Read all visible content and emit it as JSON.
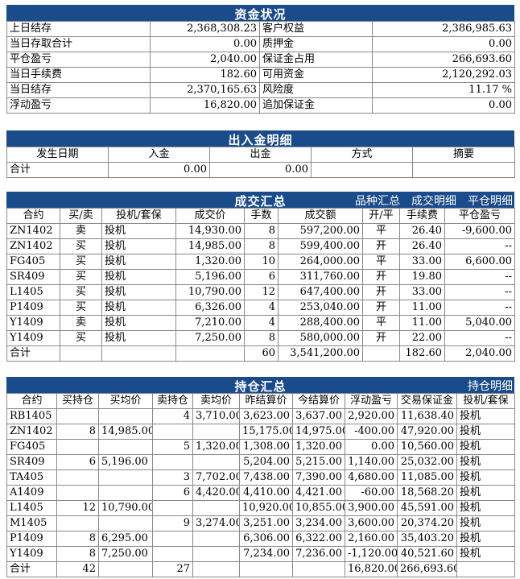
{
  "fund": {
    "title": "资金状况",
    "rows": [
      [
        "上日结存",
        "2,368,308.23",
        "客户权益",
        "2,386,985.63"
      ],
      [
        "当日存取合计",
        "0.00",
        "质押金",
        "0.00"
      ],
      [
        "平仓盈亏",
        "2,040.00",
        "保证金占用",
        "266,693.60"
      ],
      [
        "当日手续费",
        "182.60",
        "可用资金",
        "2,120,292.03"
      ],
      [
        "当日结存",
        "2,370,165.63",
        "风险度",
        "11.17 %"
      ],
      [
        "浮动盈亏",
        "16,820.00",
        "追加保证金",
        "0.00"
      ]
    ]
  },
  "cash": {
    "title": "出入金明细",
    "headers": [
      "发生日期",
      "入金",
      "出金",
      "方式",
      "摘要"
    ],
    "total": [
      "合计",
      "0.00",
      "0.00",
      "",
      ""
    ]
  },
  "trades": {
    "title": "成交汇总",
    "links": [
      "品种汇总",
      "成交明细",
      "平仓明细"
    ],
    "headers": [
      "合约",
      "买/卖",
      "投机/套保",
      "成交价",
      "手数",
      "成交额",
      "开/平",
      "手续费",
      "平仓盈亏"
    ],
    "rows": [
      [
        "ZN1402",
        "卖",
        "投机",
        "14,930.00",
        "8",
        "597,200.00",
        "平",
        "26.40",
        "-9,600.00"
      ],
      [
        "ZN1402",
        "买",
        "投机",
        "14,985.00",
        "8",
        "599,400.00",
        "开",
        "26.40",
        "--"
      ],
      [
        "FG405",
        "买",
        "投机",
        "1,320.00",
        "10",
        "264,000.00",
        "平",
        "33.00",
        "6,600.00"
      ],
      [
        "SR409",
        "买",
        "投机",
        "5,196.00",
        "6",
        "311,760.00",
        "开",
        "19.80",
        "--"
      ],
      [
        "L1405",
        "买",
        "投机",
        "10,790.00",
        "12",
        "647,400.00",
        "开",
        "33.00",
        "--"
      ],
      [
        "P1409",
        "买",
        "投机",
        "6,326.00",
        "4",
        "253,040.00",
        "开",
        "11.00",
        "--"
      ],
      [
        "Y1409",
        "卖",
        "投机",
        "7,210.00",
        "4",
        "288,400.00",
        "平",
        "11.00",
        "5,040.00"
      ],
      [
        "Y1409",
        "买",
        "投机",
        "7,250.00",
        "8",
        "580,000.00",
        "开",
        "22.00",
        "--"
      ]
    ],
    "total": [
      "合计",
      "",
      "",
      "",
      "60",
      "3,541,200.00",
      "",
      "182.60",
      "2,040.00"
    ]
  },
  "positions": {
    "title": "持仓汇总",
    "links": [
      "持仓明细"
    ],
    "headers": [
      "合约",
      "买持仓",
      "买均价",
      "卖持仓",
      "卖均价",
      "昨结算价",
      "今结算价",
      "浮动盈亏",
      "交易保证金",
      "投机/套保"
    ],
    "rows": [
      [
        "RB1405",
        "",
        "",
        "4",
        "3,710.00",
        "3,623.00",
        "3,637.00",
        "2,920.00",
        "11,638.40",
        "投机"
      ],
      [
        "ZN1402",
        "8",
        "14,985.00",
        "",
        "",
        "15,175.00",
        "14,975.00",
        "-400.00",
        "47,920.00",
        "投机"
      ],
      [
        "FG405",
        "",
        "",
        "5",
        "1,320.00",
        "1,308.00",
        "1,320.00",
        "0.00",
        "10,560.00",
        "投机"
      ],
      [
        "SR409",
        "6",
        "5,196.00",
        "",
        "",
        "5,204.00",
        "5,215.00",
        "1,140.00",
        "25,032.00",
        "投机"
      ],
      [
        "TA405",
        "",
        "",
        "3",
        "7,702.00",
        "7,438.00",
        "7,390.00",
        "4,680.00",
        "11,085.00",
        "投机"
      ],
      [
        "A1409",
        "",
        "",
        "6",
        "4,420.00",
        "4,410.00",
        "4,421.00",
        "-60.00",
        "18,568.20",
        "投机"
      ],
      [
        "L1405",
        "12",
        "10,790.00",
        "",
        "",
        "10,920.00",
        "10,855.00",
        "3,900.00",
        "45,591.00",
        "投机"
      ],
      [
        "M1405",
        "",
        "",
        "9",
        "3,274.00",
        "3,251.00",
        "3,234.00",
        "3,600.00",
        "20,374.20",
        "投机"
      ],
      [
        "P1409",
        "8",
        "6,295.00",
        "",
        "",
        "6,306.00",
        "6,322.00",
        "2,160.00",
        "35,403.20",
        "投机"
      ],
      [
        "Y1409",
        "8",
        "7,250.00",
        "",
        "",
        "7,234.00",
        "7,236.00",
        "-1,120.00",
        "40,521.60",
        "投机"
      ]
    ],
    "total": [
      "合计",
      "42",
      "",
      "27",
      "",
      "",
      "",
      "16,820.00",
      "266,693.60",
      ""
    ]
  }
}
